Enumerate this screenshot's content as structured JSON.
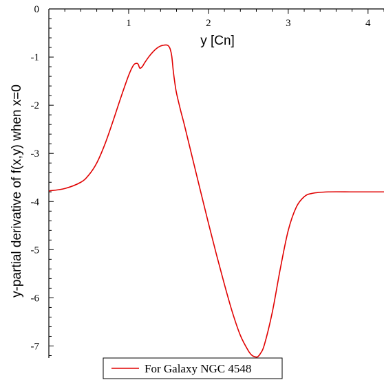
{
  "chart_data": {
    "type": "line",
    "xlabel": "y [Cn]",
    "ylabel": "y-partial derivative of f(x,y) when x=0",
    "xlim": [
      0,
      4.2
    ],
    "ylim": [
      -7.25,
      0
    ],
    "x_ticks": [
      1,
      2,
      3,
      4
    ],
    "y_ticks": [
      0,
      -1,
      -2,
      -3,
      -4,
      -5,
      -6,
      -7
    ],
    "grid": false,
    "legend_placement": "bottom-center",
    "series": [
      {
        "name": "For Galaxy NGC 4548",
        "color": "#e00000",
        "x": [
          0.0,
          0.2,
          0.4,
          0.5,
          0.6,
          0.7,
          0.8,
          0.9,
          1.0,
          1.06,
          1.1,
          1.12,
          1.14,
          1.17,
          1.2,
          1.25,
          1.3,
          1.35,
          1.4,
          1.45,
          1.48,
          1.5,
          1.52,
          1.54,
          1.56,
          1.58,
          1.6,
          1.65,
          1.7,
          1.8,
          1.9,
          2.0,
          2.1,
          2.2,
          2.3,
          2.4,
          2.5,
          2.55,
          2.6,
          2.62,
          2.65,
          2.7,
          2.8,
          2.9,
          3.0,
          3.1,
          3.2,
          3.3,
          3.5,
          3.8,
          4.0,
          4.2
        ],
        "y": [
          -3.78,
          -3.73,
          -3.6,
          -3.45,
          -3.2,
          -2.82,
          -2.35,
          -1.85,
          -1.38,
          -1.17,
          -1.13,
          -1.15,
          -1.23,
          -1.2,
          -1.12,
          -1.0,
          -0.9,
          -0.82,
          -0.77,
          -0.75,
          -0.75,
          -0.77,
          -0.83,
          -0.98,
          -1.3,
          -1.55,
          -1.75,
          -2.1,
          -2.42,
          -3.1,
          -3.78,
          -4.45,
          -5.1,
          -5.72,
          -6.3,
          -6.78,
          -7.1,
          -7.2,
          -7.23,
          -7.22,
          -7.16,
          -6.98,
          -6.3,
          -5.4,
          -4.6,
          -4.12,
          -3.9,
          -3.83,
          -3.8,
          -3.8,
          -3.8,
          -3.8
        ]
      }
    ]
  }
}
